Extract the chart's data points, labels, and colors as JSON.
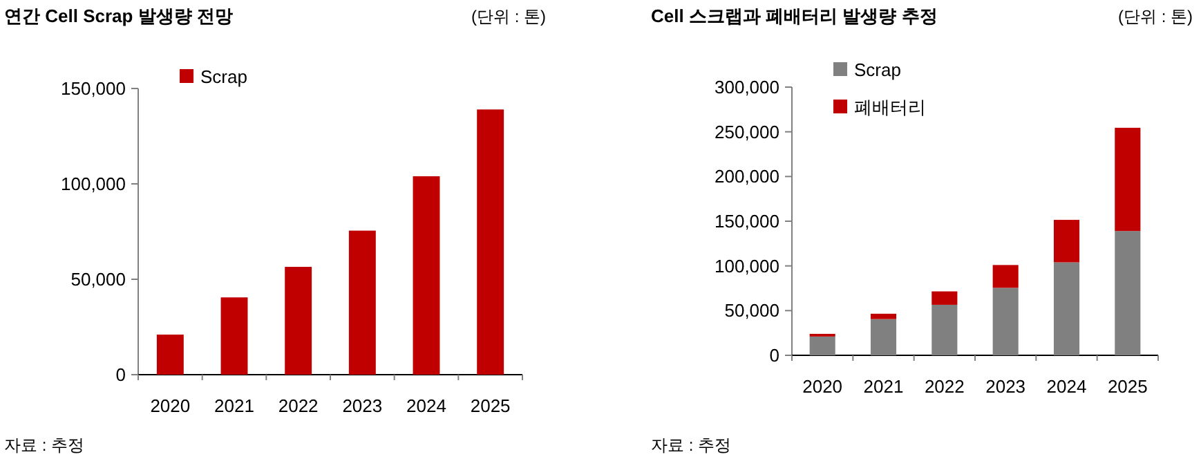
{
  "chart_data": [
    {
      "type": "bar",
      "title": "연간 Cell Scrap 발생량 전망",
      "subtitle": "(단위 : 톤)",
      "categories": [
        "2020",
        "2021",
        "2022",
        "2023",
        "2024",
        "2025"
      ],
      "series": [
        {
          "name": "Scrap",
          "color": "#c00000",
          "values": [
            21000,
            40500,
            56500,
            75500,
            104000,
            139000
          ]
        }
      ],
      "ylim": [
        0,
        150000
      ],
      "yticks": [
        0,
        {
          "value": 50000,
          "label": "50,000"
        },
        {
          "value": 100000,
          "label": "100,000"
        },
        {
          "value": 150000,
          "label": "150,000"
        }
      ],
      "legend": "top left",
      "annotations": [
        "자료 : 추정"
      ]
    },
    {
      "type": "bar",
      "stacked": true,
      "title": "Cell 스크랩과 폐배터리 발생량 추정",
      "subtitle": "(단위 : 톤)",
      "categories": [
        "2020",
        "2021",
        "2022",
        "2023",
        "2024",
        "2025"
      ],
      "series": [
        {
          "name": "Scrap",
          "color": "#808080",
          "values": [
            21000,
            40500,
            56500,
            75500,
            104000,
            139000
          ]
        },
        {
          "name": "폐배터리",
          "color": "#c00000",
          "values": [
            3000,
            6000,
            15000,
            25500,
            47500,
            115500
          ]
        }
      ],
      "ylim": [
        0,
        300000
      ],
      "yticks": [
        0,
        {
          "value": 50000,
          "label": "50,000"
        },
        {
          "value": 100000,
          "label": "100,000"
        },
        {
          "value": 150000,
          "label": "150,000"
        },
        {
          "value": 200000,
          "label": "200,000"
        },
        {
          "value": 250000,
          "label": "250,000"
        },
        {
          "value": 300000,
          "label": "300,000"
        }
      ],
      "legend": "top left",
      "annotations": [
        "자료 : 추정"
      ]
    }
  ]
}
